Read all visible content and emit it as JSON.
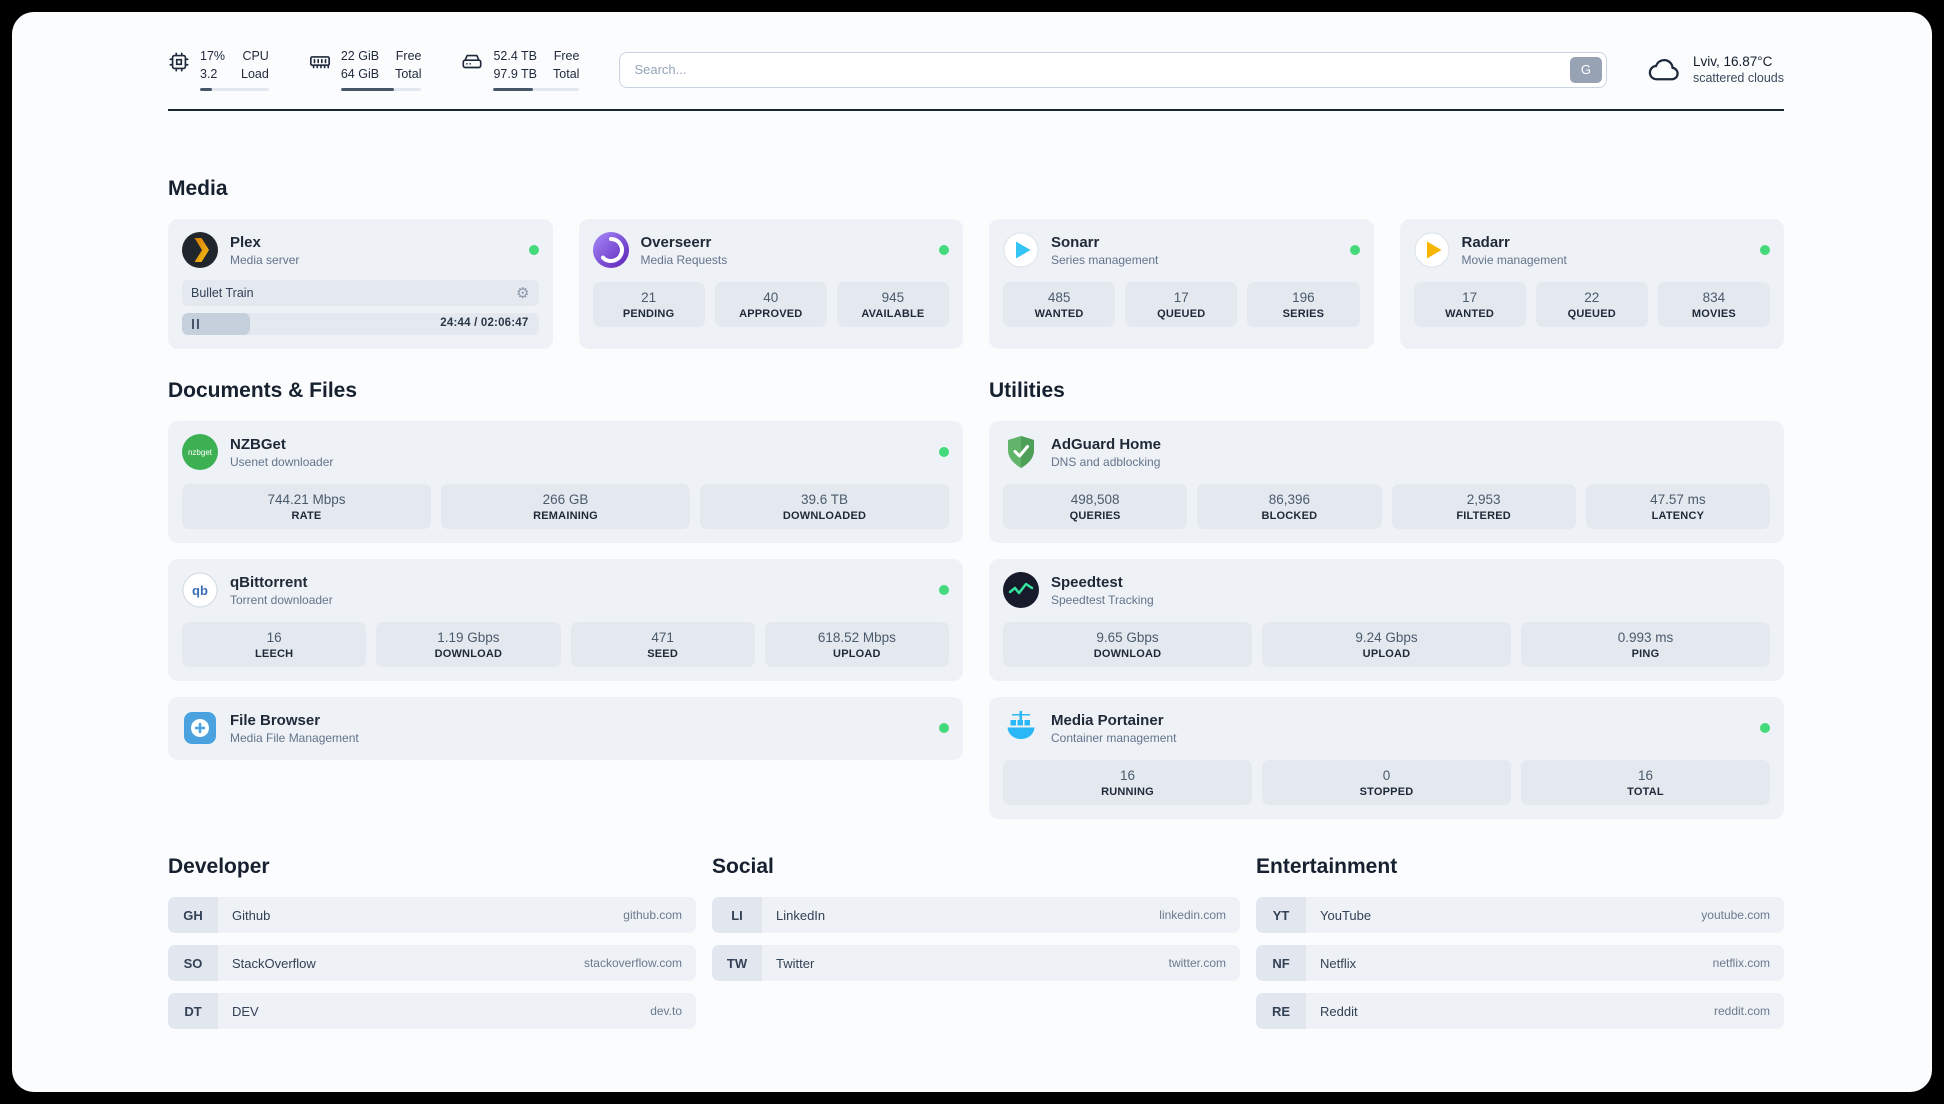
{
  "colors": {
    "status_online": "#44d97b",
    "progress_fill": "#475569"
  },
  "topbar": {
    "resources": [
      {
        "icon": "cpu-icon",
        "value1": "17%",
        "value2": "3.2",
        "label1": "CPU",
        "label2": "Load",
        "progress_pct": 17
      },
      {
        "icon": "memory-icon",
        "value1": "22 GiB",
        "value2": "64 GiB",
        "label1": "Free",
        "label2": "Total",
        "progress_pct": 66
      },
      {
        "icon": "disk-icon",
        "value1": "52.4 TB",
        "value2": "97.9 TB",
        "label1": "Free",
        "label2": "Total",
        "progress_pct": 46
      }
    ],
    "search": {
      "placeholder": "Search...",
      "provider": "G"
    },
    "weather": {
      "icon": "cloud-icon",
      "location": "Lviv, 16.87°C",
      "condition": "scattered clouds"
    }
  },
  "sections": {
    "media": {
      "title": "Media",
      "cards": [
        {
          "icon": "plex-icon",
          "name": "Plex",
          "subtitle": "Media server",
          "online": true,
          "player": {
            "track": "Bullet Train",
            "time": "24:44 / 02:06:47",
            "progress_pct": 19
          }
        },
        {
          "icon": "overseerr-icon",
          "name": "Overseerr",
          "subtitle": "Media Requests",
          "online": true,
          "stats": [
            {
              "value": "21",
              "label": "PENDING"
            },
            {
              "value": "40",
              "label": "APPROVED"
            },
            {
              "value": "945",
              "label": "AVAILABLE"
            }
          ]
        },
        {
          "icon": "sonarr-icon",
          "name": "Sonarr",
          "subtitle": "Series management",
          "online": true,
          "stats": [
            {
              "value": "485",
              "label": "WANTED"
            },
            {
              "value": "17",
              "label": "QUEUED"
            },
            {
              "value": "196",
              "label": "SERIES"
            }
          ]
        },
        {
          "icon": "radarr-icon",
          "name": "Radarr",
          "subtitle": "Movie management",
          "online": true,
          "stats": [
            {
              "value": "17",
              "label": "WANTED"
            },
            {
              "value": "22",
              "label": "QUEUED"
            },
            {
              "value": "834",
              "label": "MOVIES"
            }
          ]
        }
      ]
    },
    "documents": {
      "title": "Documents & Files",
      "cards": [
        {
          "icon": "nzbget-icon",
          "name": "NZBGet",
          "subtitle": "Usenet downloader",
          "online": true,
          "stats": [
            {
              "value": "744.21 Mbps",
              "label": "RATE"
            },
            {
              "value": "266 GB",
              "label": "REMAINING"
            },
            {
              "value": "39.6 TB",
              "label": "DOWNLOADED"
            }
          ]
        },
        {
          "icon": "qbittorrent-icon",
          "name": "qBittorrent",
          "subtitle": "Torrent downloader",
          "online": true,
          "stats": [
            {
              "value": "16",
              "label": "LEECH"
            },
            {
              "value": "1.19 Gbps",
              "label": "DOWNLOAD"
            },
            {
              "value": "471",
              "label": "SEED"
            },
            {
              "value": "618.52 Mbps",
              "label": "UPLOAD"
            }
          ]
        },
        {
          "icon": "filebrowser-icon",
          "name": "File Browser",
          "subtitle": "Media File Management",
          "online": true,
          "stats": []
        }
      ]
    },
    "utilities": {
      "title": "Utilities",
      "cards": [
        {
          "icon": "adguard-icon",
          "name": "AdGuard Home",
          "subtitle": "DNS and adblocking",
          "online": false,
          "stats": [
            {
              "value": "498,508",
              "label": "QUERIES"
            },
            {
              "value": "86,396",
              "label": "BLOCKED"
            },
            {
              "value": "2,953",
              "label": "FILTERED"
            },
            {
              "value": "47.57 ms",
              "label": "LATENCY"
            }
          ]
        },
        {
          "icon": "speedtest-icon",
          "name": "Speedtest",
          "subtitle": "Speedtest Tracking",
          "online": false,
          "stats": [
            {
              "value": "9.65 Gbps",
              "label": "DOWNLOAD"
            },
            {
              "value": "9.24 Gbps",
              "label": "UPLOAD"
            },
            {
              "value": "0.993 ms",
              "label": "PING"
            }
          ]
        },
        {
          "icon": "portainer-icon",
          "name": "Media Portainer",
          "subtitle": "Container management",
          "online": true,
          "stats": [
            {
              "value": "16",
              "label": "RUNNING"
            },
            {
              "value": "0",
              "label": "STOPPED"
            },
            {
              "value": "16",
              "label": "TOTAL"
            }
          ]
        }
      ]
    },
    "developer": {
      "title": "Developer",
      "links": [
        {
          "abbr": "GH",
          "name": "Github",
          "url": "github.com"
        },
        {
          "abbr": "SO",
          "name": "StackOverflow",
          "url": "stackoverflow.com"
        },
        {
          "abbr": "DT",
          "name": "DEV",
          "url": "dev.to"
        }
      ]
    },
    "social": {
      "title": "Social",
      "links": [
        {
          "abbr": "LI",
          "name": "LinkedIn",
          "url": "linkedin.com"
        },
        {
          "abbr": "TW",
          "name": "Twitter",
          "url": "twitter.com"
        }
      ]
    },
    "entertainment": {
      "title": "Entertainment",
      "links": [
        {
          "abbr": "YT",
          "name": "YouTube",
          "url": "youtube.com"
        },
        {
          "abbr": "NF",
          "name": "Netflix",
          "url": "netflix.com"
        },
        {
          "abbr": "RE",
          "name": "Reddit",
          "url": "reddit.com"
        }
      ]
    }
  }
}
